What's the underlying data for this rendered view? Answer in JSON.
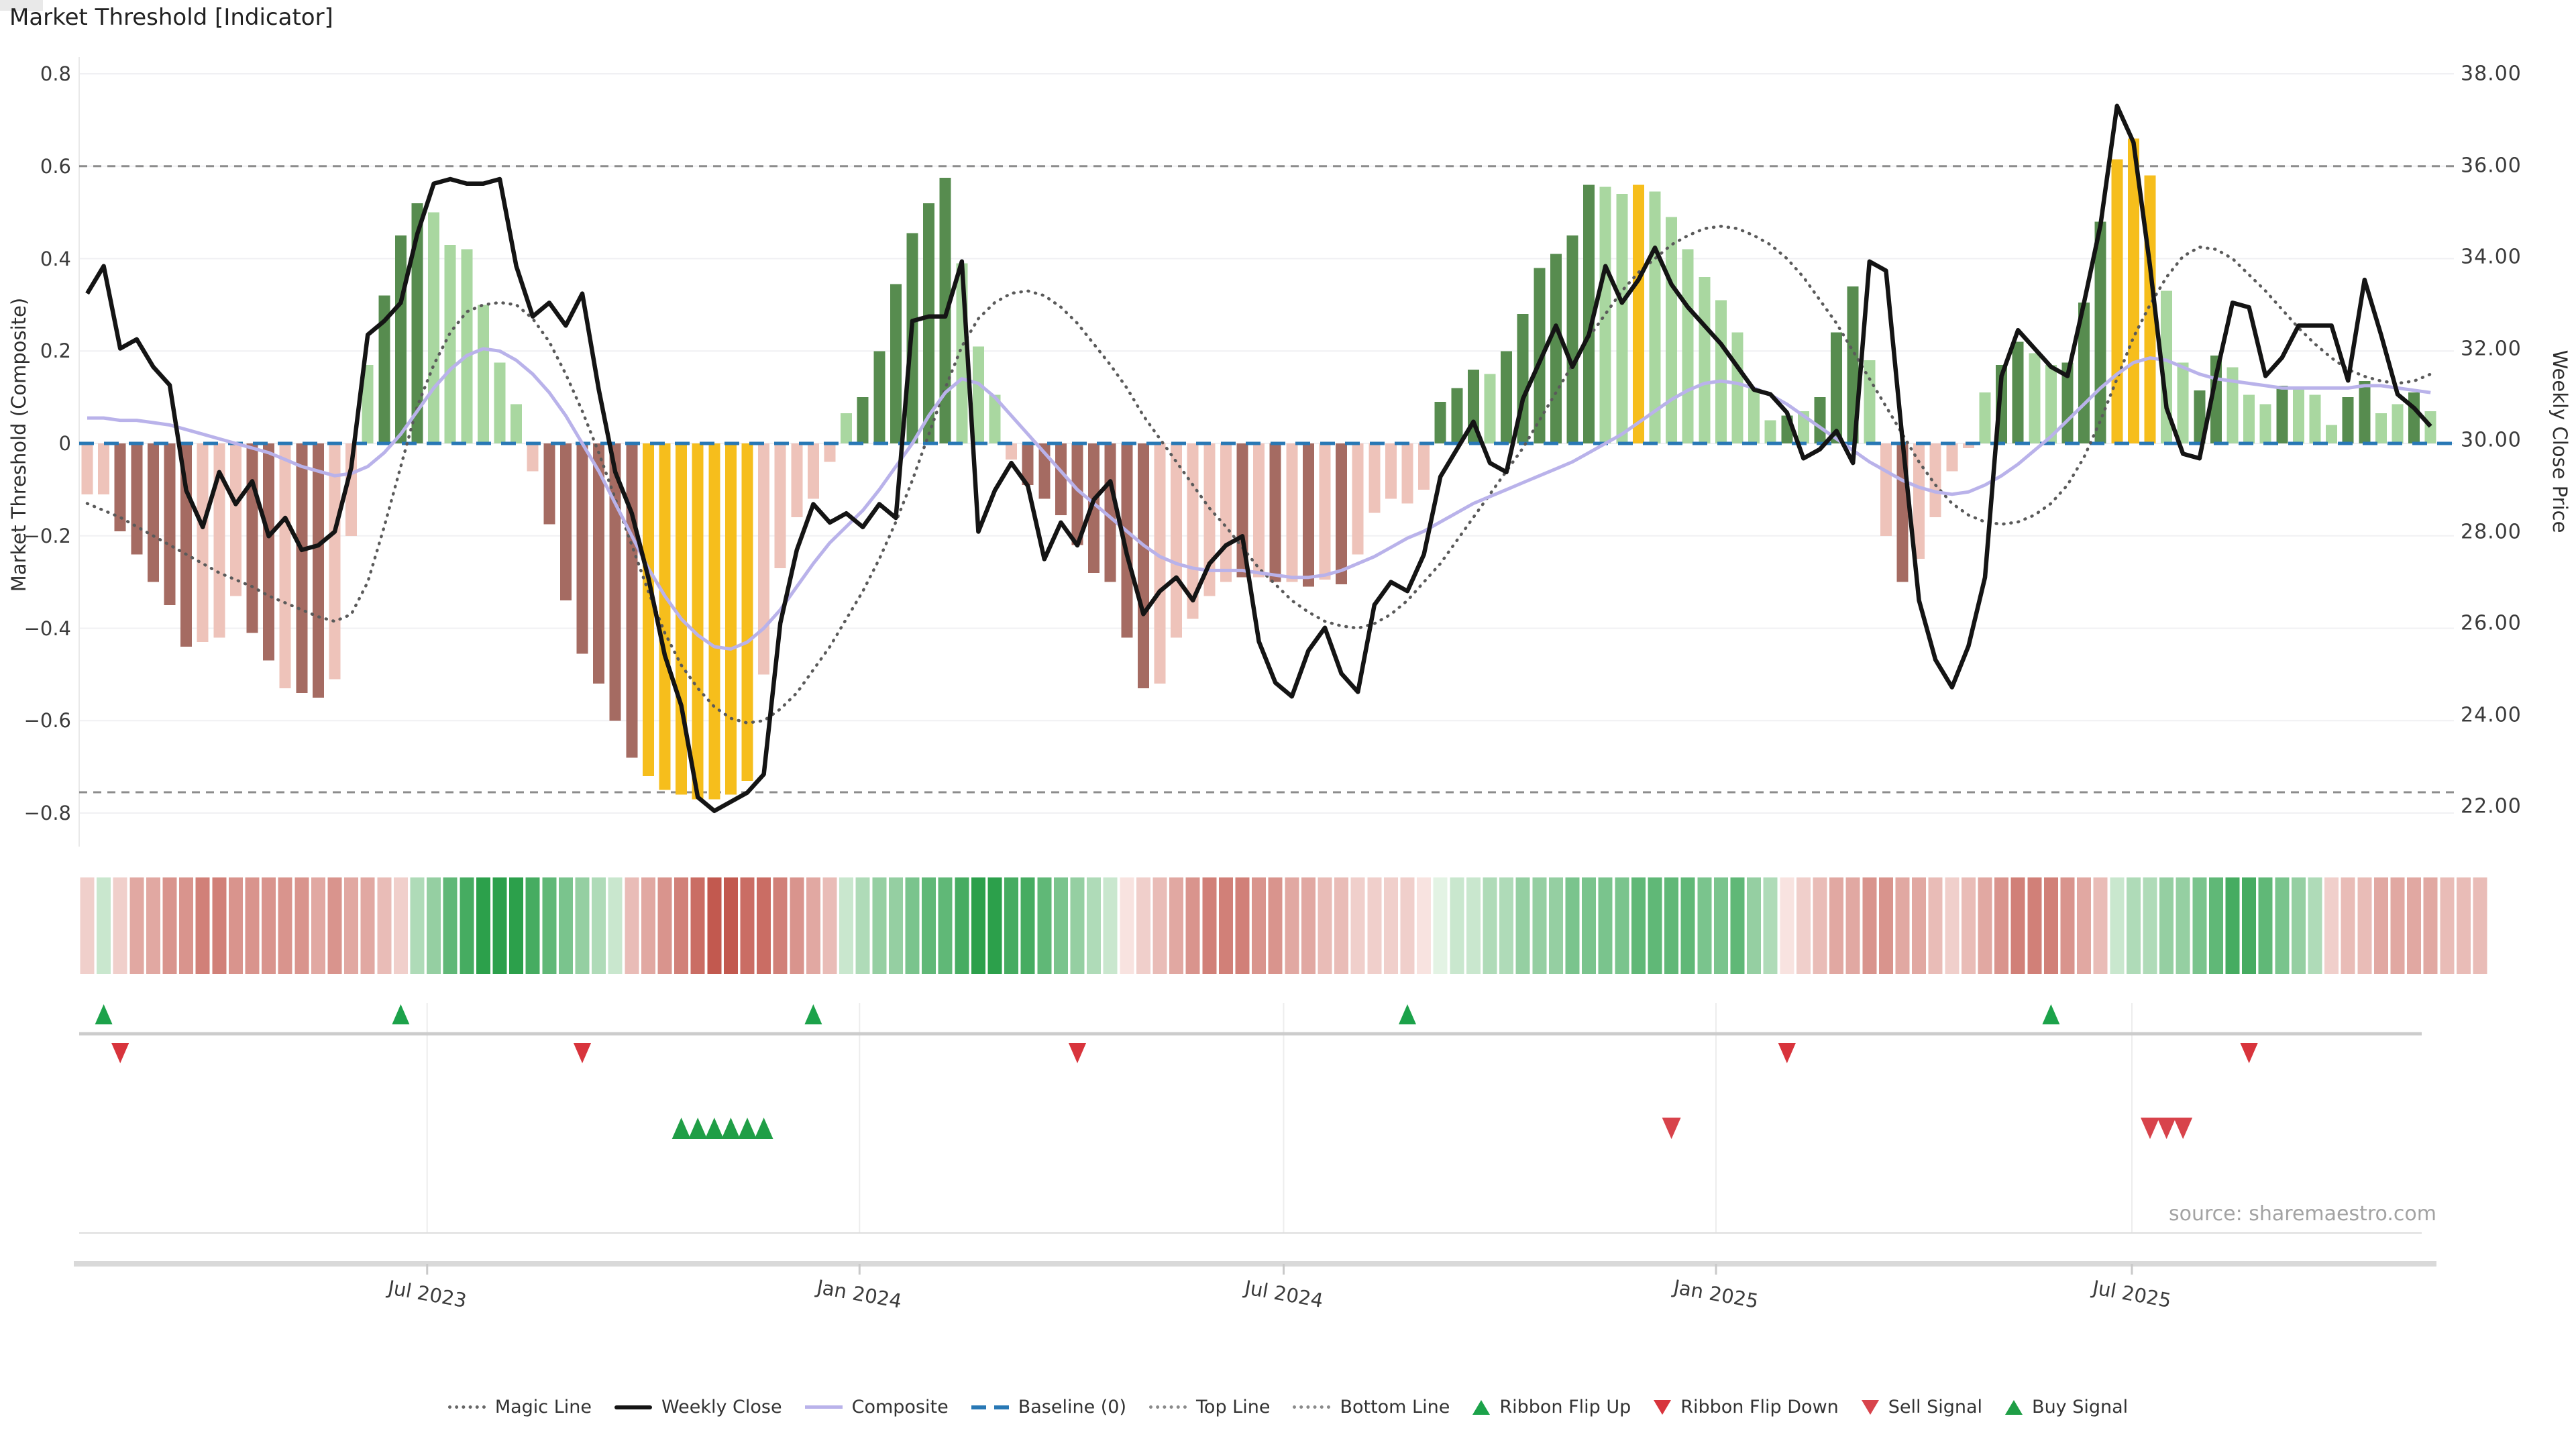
{
  "title": "Market Threshold [Indicator]",
  "source": "source: sharemaestro.com",
  "axes": {
    "left": {
      "label": "Market Threshold (Composite)",
      "ticks": [
        "0.8",
        "0.6",
        "0.4",
        "0.2",
        "0",
        "−0.2",
        "−0.4",
        "−0.6",
        "−0.8"
      ],
      "tick_values": [
        0.8,
        0.6,
        0.4,
        0.2,
        0,
        -0.2,
        -0.4,
        -0.6,
        -0.8
      ]
    },
    "right": {
      "label": "Weekly Close Price",
      "ticks": [
        "38.00",
        "36.00",
        "34.00",
        "32.00",
        "30.00",
        "28.00",
        "26.00",
        "24.00",
        "22.00"
      ],
      "tick_values": [
        38,
        36,
        34,
        32,
        30,
        28,
        26,
        24,
        22
      ]
    },
    "x": {
      "ticks": [
        "Jul 2023",
        "Jan 2024",
        "Jul 2024",
        "Jan 2025",
        "Jul 2025"
      ],
      "tick_weeks": [
        20.6,
        46.8,
        72.5,
        98.7,
        123.9
      ]
    }
  },
  "chart_data": {
    "type": "combo-bar-line",
    "title": "Market Threshold [Indicator]",
    "ylabel_left": "Market Threshold (Composite)",
    "ylabel_right": "Weekly Close Price",
    "ylim_left": [
      -0.8,
      0.8
    ],
    "ylim_right": [
      22,
      38
    ],
    "grid": "horizontal",
    "legend_position": "bottom-center",
    "x_period": "weekly, Feb 2023 - Nov 2025",
    "series": {
      "top_line": 0.6,
      "bottom_line": -0.755,
      "baseline": 0,
      "threshold_bars": {
        "values": [
          -0.11,
          -0.11,
          -0.19,
          -0.24,
          -0.3,
          -0.35,
          -0.44,
          -0.43,
          -0.42,
          -0.33,
          -0.41,
          -0.47,
          -0.53,
          -0.54,
          -0.55,
          -0.51,
          -0.2,
          0.17,
          0.32,
          0.45,
          0.52,
          0.5,
          0.43,
          0.42,
          0.3,
          0.175,
          0.085,
          -0.06,
          -0.175,
          -0.34,
          -0.455,
          -0.52,
          -0.6,
          -0.68,
          -0.72,
          -0.75,
          -0.76,
          -0.77,
          -0.77,
          -0.76,
          -0.73,
          -0.5,
          -0.27,
          -0.16,
          -0.12,
          -0.04,
          0.065,
          0.1,
          0.2,
          0.345,
          0.455,
          0.52,
          0.575,
          0.39,
          0.21,
          0.105,
          -0.035,
          -0.09,
          -0.12,
          -0.155,
          -0.22,
          -0.28,
          -0.3,
          -0.42,
          -0.53,
          -0.52,
          -0.42,
          -0.38,
          -0.33,
          -0.3,
          -0.29,
          -0.29,
          -0.3,
          -0.3,
          -0.31,
          -0.295,
          -0.305,
          -0.24,
          -0.15,
          -0.12,
          -0.13,
          -0.1,
          0.09,
          0.12,
          0.16,
          0.15,
          0.2,
          0.28,
          0.38,
          0.41,
          0.45,
          0.56,
          0.555,
          0.54,
          0.56,
          0.545,
          0.49,
          0.42,
          0.36,
          0.31,
          0.24,
          0.12,
          0.05,
          0.06,
          0.07,
          0.1,
          0.24,
          0.34,
          0.18,
          -0.2,
          -0.3,
          -0.25,
          -0.16,
          -0.06,
          -0.01,
          0.11,
          0.17,
          0.22,
          0.195,
          0.17,
          0.175,
          0.305,
          0.48,
          0.615,
          0.66,
          0.58,
          0.33,
          0.175,
          0.115,
          0.19,
          0.165,
          0.105,
          0.085,
          0.125,
          0.12,
          0.105,
          0.04,
          0.1,
          0.135,
          0.065,
          0.085,
          0.11,
          0.07
        ],
        "color_class": [
          "LP",
          "LP",
          "DP",
          "DP",
          "DP",
          "DP",
          "DP",
          "LP",
          "LP",
          "LP",
          "DP",
          "DP",
          "LP",
          "DP",
          "DP",
          "LP",
          "LP",
          "LG",
          "DG",
          "DG",
          "DG",
          "LG",
          "LG",
          "LG",
          "LG",
          "LG",
          "LG",
          "LP",
          "DP",
          "DP",
          "DP",
          "DP",
          "DP",
          "DP",
          "Y",
          "Y",
          "Y",
          "Y",
          "Y",
          "Y",
          "Y",
          "LP",
          "LP",
          "LP",
          "LP",
          "LP",
          "LG",
          "DG",
          "DG",
          "DG",
          "DG",
          "DG",
          "DG",
          "LG",
          "LG",
          "LG",
          "LP",
          "DP",
          "DP",
          "DP",
          "DP",
          "DP",
          "DP",
          "DP",
          "DP",
          "LP",
          "LP",
          "LP",
          "LP",
          "LP",
          "DP",
          "LP",
          "DP",
          "LP",
          "DP",
          "LP",
          "DP",
          "LP",
          "LP",
          "LP",
          "LP",
          "LP",
          "DG",
          "DG",
          "DG",
          "LG",
          "DG",
          "DG",
          "DG",
          "DG",
          "DG",
          "DG",
          "LG",
          "LG",
          "Y",
          "LG",
          "LG",
          "LG",
          "LG",
          "LG",
          "LG",
          "LG",
          "LG",
          "DG",
          "LG",
          "DG",
          "DG",
          "DG",
          "LG",
          "LP",
          "DP",
          "LP",
          "LP",
          "LP",
          "LP",
          "LG",
          "DG",
          "DG",
          "LG",
          "LG",
          "DG",
          "DG",
          "DG",
          "Y",
          "Y",
          "Y",
          "LG",
          "LG",
          "DG",
          "DG",
          "LG",
          "LG",
          "LG",
          "DG",
          "LG",
          "LG",
          "LG",
          "DG",
          "DG",
          "LG",
          "LG",
          "DG",
          "LG"
        ]
      },
      "weekly_close": [
        33.2,
        33.8,
        32.0,
        32.2,
        31.6,
        31.2,
        28.9,
        28.1,
        29.3,
        28.6,
        29.1,
        27.9,
        28.3,
        27.6,
        27.7,
        28.0,
        29.4,
        32.3,
        32.6,
        33.0,
        34.5,
        35.6,
        35.7,
        35.6,
        35.6,
        35.7,
        33.8,
        32.7,
        33.0,
        32.5,
        33.2,
        31.1,
        29.3,
        28.4,
        27.0,
        25.3,
        24.2,
        22.2,
        21.9,
        22.1,
        22.3,
        22.7,
        26.0,
        27.6,
        28.6,
        28.2,
        28.4,
        28.1,
        28.6,
        28.3,
        32.6,
        32.7,
        32.7,
        33.9,
        28.0,
        28.9,
        29.5,
        29.0,
        27.4,
        28.2,
        27.7,
        28.7,
        29.1,
        27.5,
        26.2,
        26.7,
        27.0,
        26.5,
        27.3,
        27.7,
        27.9,
        25.6,
        24.7,
        24.4,
        25.4,
        25.9,
        24.9,
        24.5,
        26.4,
        26.9,
        26.7,
        27.5,
        29.2,
        29.8,
        30.4,
        29.5,
        29.3,
        30.9,
        31.7,
        32.5,
        31.6,
        32.3,
        33.8,
        33.0,
        33.5,
        34.2,
        33.4,
        32.9,
        32.5,
        32.1,
        31.6,
        31.1,
        31.0,
        30.6,
        29.6,
        29.8,
        30.2,
        29.5,
        33.9,
        33.7,
        30.0,
        26.5,
        25.2,
        24.6,
        25.5,
        27.0,
        31.4,
        32.4,
        32.0,
        31.6,
        31.4,
        33.0,
        34.7,
        37.3,
        36.5,
        33.8,
        30.7,
        29.7,
        29.6,
        31.4,
        33.0,
        32.9,
        31.4,
        31.8,
        32.5,
        32.5,
        32.5,
        31.3,
        33.5,
        32.3,
        31.0,
        30.7,
        30.3
      ],
      "composite": [
        0.055,
        0.055,
        0.05,
        0.05,
        0.045,
        0.04,
        0.03,
        0.02,
        0.01,
        0.0,
        -0.01,
        -0.02,
        -0.035,
        -0.05,
        -0.06,
        -0.07,
        -0.065,
        -0.05,
        -0.02,
        0.02,
        0.07,
        0.12,
        0.16,
        0.19,
        0.205,
        0.2,
        0.18,
        0.15,
        0.11,
        0.06,
        0.0,
        -0.06,
        -0.13,
        -0.2,
        -0.27,
        -0.33,
        -0.38,
        -0.415,
        -0.44,
        -0.445,
        -0.43,
        -0.4,
        -0.36,
        -0.31,
        -0.26,
        -0.215,
        -0.18,
        -0.145,
        -0.1,
        -0.05,
        0.0,
        0.06,
        0.11,
        0.14,
        0.13,
        0.1,
        0.06,
        0.02,
        -0.02,
        -0.06,
        -0.1,
        -0.13,
        -0.16,
        -0.19,
        -0.22,
        -0.245,
        -0.26,
        -0.27,
        -0.275,
        -0.275,
        -0.275,
        -0.28,
        -0.285,
        -0.29,
        -0.29,
        -0.285,
        -0.275,
        -0.26,
        -0.245,
        -0.225,
        -0.205,
        -0.19,
        -0.17,
        -0.15,
        -0.13,
        -0.115,
        -0.1,
        -0.085,
        -0.07,
        -0.055,
        -0.04,
        -0.02,
        0.0,
        0.02,
        0.045,
        0.07,
        0.095,
        0.115,
        0.13,
        0.135,
        0.13,
        0.12,
        0.105,
        0.085,
        0.06,
        0.035,
        0.01,
        -0.015,
        -0.04,
        -0.06,
        -0.08,
        -0.095,
        -0.105,
        -0.11,
        -0.105,
        -0.09,
        -0.07,
        -0.045,
        -0.015,
        0.015,
        0.05,
        0.085,
        0.12,
        0.15,
        0.175,
        0.185,
        0.18,
        0.165,
        0.15,
        0.14,
        0.135,
        0.13,
        0.125,
        0.12,
        0.12,
        0.12,
        0.12,
        0.12,
        0.125,
        0.125,
        0.12,
        0.115,
        0.11
      ],
      "magic_line": [
        -0.13,
        -0.145,
        -0.16,
        -0.18,
        -0.2,
        -0.22,
        -0.24,
        -0.26,
        -0.28,
        -0.295,
        -0.31,
        -0.33,
        -0.345,
        -0.36,
        -0.375,
        -0.385,
        -0.37,
        -0.3,
        -0.18,
        -0.05,
        0.08,
        0.17,
        0.24,
        0.285,
        0.3,
        0.305,
        0.3,
        0.27,
        0.22,
        0.15,
        0.07,
        -0.02,
        -0.12,
        -0.22,
        -0.32,
        -0.41,
        -0.48,
        -0.53,
        -0.57,
        -0.595,
        -0.605,
        -0.6,
        -0.575,
        -0.54,
        -0.49,
        -0.44,
        -0.38,
        -0.32,
        -0.25,
        -0.17,
        -0.08,
        0.02,
        0.12,
        0.21,
        0.27,
        0.305,
        0.325,
        0.33,
        0.32,
        0.295,
        0.26,
        0.215,
        0.17,
        0.12,
        0.06,
        0.01,
        -0.04,
        -0.09,
        -0.14,
        -0.18,
        -0.225,
        -0.27,
        -0.305,
        -0.34,
        -0.365,
        -0.385,
        -0.395,
        -0.4,
        -0.39,
        -0.37,
        -0.34,
        -0.3,
        -0.26,
        -0.21,
        -0.16,
        -0.11,
        -0.06,
        -0.01,
        0.05,
        0.11,
        0.17,
        0.23,
        0.28,
        0.33,
        0.37,
        0.4,
        0.43,
        0.45,
        0.465,
        0.47,
        0.465,
        0.45,
        0.43,
        0.4,
        0.36,
        0.31,
        0.26,
        0.2,
        0.14,
        0.08,
        0.02,
        -0.04,
        -0.09,
        -0.13,
        -0.155,
        -0.17,
        -0.175,
        -0.17,
        -0.155,
        -0.13,
        -0.09,
        -0.03,
        0.05,
        0.14,
        0.23,
        0.3,
        0.36,
        0.405,
        0.425,
        0.42,
        0.4,
        0.365,
        0.33,
        0.29,
        0.25,
        0.215,
        0.185,
        0.16,
        0.145,
        0.135,
        0.13,
        0.135,
        0.15
      ]
    },
    "ribbon": [
      -1,
      1,
      -1,
      -2,
      -2,
      -2.5,
      -2.5,
      -3,
      -3,
      -2.5,
      -2.5,
      -2.5,
      -2.5,
      -2.5,
      -2,
      -2.5,
      -2,
      -2,
      -1.5,
      -1,
      1.5,
      2,
      3,
      3.5,
      4,
      4,
      4,
      3.5,
      3,
      2.5,
      2,
      1.5,
      1,
      -1.5,
      -2,
      -2.5,
      -3,
      -3.5,
      -4,
      -4,
      -3.5,
      -3.5,
      -3,
      -2.5,
      -2,
      -1.5,
      1,
      1.5,
      2,
      2,
      2.5,
      3,
      3,
      3.5,
      4,
      4,
      3.5,
      3.5,
      3,
      2.5,
      2,
      1.5,
      1,
      -0.5,
      -1,
      -1.5,
      -2,
      -2.5,
      -3,
      -3,
      -3,
      -2.5,
      -2.5,
      -2,
      -2,
      -1.5,
      -1.5,
      -1,
      -1,
      -1,
      -1,
      -0.5,
      0.5,
      1,
      1,
      1.5,
      1.5,
      2,
      2,
      2,
      2.5,
      2.5,
      2.5,
      2.5,
      3,
      3,
      3,
      3,
      2.5,
      2.5,
      3,
      2,
      1.5,
      -0.5,
      -1,
      -1.5,
      -2,
      -2,
      -2.5,
      -2.5,
      -2,
      -2,
      -1.5,
      -1,
      -1.5,
      -2,
      -2.5,
      -3,
      -3,
      -3,
      -2.5,
      -2,
      -1.5,
      1,
      1.5,
      1.5,
      2,
      2,
      2.5,
      3,
      3.5,
      3.5,
      3,
      2.5,
      2,
      1.5,
      -1,
      -1.5,
      -1.5,
      -2,
      -2,
      -2,
      -2,
      -1.5,
      -1.5,
      -1.5
    ],
    "signals": {
      "ribbon_flip_up_weeks": [
        1,
        19,
        44,
        80,
        119
      ],
      "ribbon_flip_down_weeks": [
        2,
        30,
        60,
        103,
        131
      ],
      "buy_signal_weeks": [
        36,
        37,
        38,
        39,
        40,
        41
      ],
      "sell_signal_weeks": [
        96,
        125,
        126,
        127
      ]
    }
  },
  "legend": [
    {
      "label": "Magic Line",
      "marker": "dotted-dark"
    },
    {
      "label": "Weekly Close",
      "marker": "solid-black"
    },
    {
      "label": "Composite",
      "marker": "solid-lavender"
    },
    {
      "label": "Baseline (0)",
      "marker": "dashed-blue"
    },
    {
      "label": "Top Line",
      "marker": "dotted-gray"
    },
    {
      "label": "Bottom Line",
      "marker": "dotted-gray"
    },
    {
      "label": "Ribbon Flip Up",
      "marker": "triangle-up"
    },
    {
      "label": "Ribbon Flip Down",
      "marker": "triangle-down"
    },
    {
      "label": "Sell Signal",
      "marker": "triangle-down-2"
    },
    {
      "label": "Buy Signal",
      "marker": "triangle-up-2"
    }
  ],
  "colors": {
    "bar_dark_green": "#578c4f",
    "bar_light_green": "#a9d7a0",
    "bar_dark_pink": "#a56b62",
    "bar_light_pink": "#eec3ba",
    "bar_gold": "#f6be1c",
    "weekly_close": "#141414",
    "composite": "#b9b2ea",
    "magic_line": "#5a5a5a",
    "baseline": "#2878b5",
    "top_bottom_line": "#8c8c8c",
    "flip_up": "#1ca24a",
    "flip_down": "#d8343c",
    "sell": "#d8434b",
    "buy": "#1f9e46",
    "ribbon_deep_green": "#2ca04b",
    "ribbon_deep_red": "#c2594f",
    "grid": "#f0f0f3"
  }
}
